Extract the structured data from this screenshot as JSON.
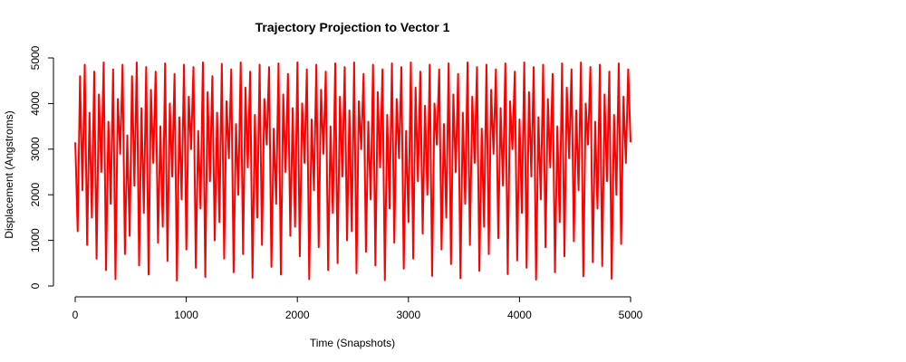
{
  "chart_data": {
    "type": "line",
    "title": "Trajectory Projection to Vector 1",
    "xlabel": "Time (Snapshots)",
    "ylabel": "Displacement (Angstroms)",
    "xlim": [
      0,
      5000
    ],
    "ylim": [
      0,
      5000
    ],
    "x_ticks": [
      "0",
      "1000",
      "2000",
      "3000",
      "4000",
      "5000"
    ],
    "y_ticks": [
      "0",
      "1000",
      "2000",
      "3000",
      "4000",
      "5000"
    ],
    "grid": false,
    "series": [
      {
        "color": "#ff0000",
        "x_start": 1,
        "x_end": 5000,
        "values": [
          3150,
          1200,
          4600,
          2100,
          4850,
          900,
          3800,
          1500,
          4700,
          600,
          4200,
          2500,
          4900,
          350,
          3600,
          1800,
          4750,
          150,
          4100,
          2900,
          4850,
          700,
          3300,
          1100,
          4600,
          2200,
          4900,
          450,
          3900,
          1600,
          4800,
          250,
          4300,
          2700,
          4700,
          950,
          3500,
          1300,
          4880,
          550,
          4000,
          2400,
          4650,
          120,
          3700,
          1900,
          4850,
          800,
          4150,
          3000,
          4800,
          400,
          3400,
          1700,
          4900,
          200,
          4250,
          2300,
          4600,
          1000,
          3800,
          1400,
          4870,
          600,
          4050,
          2800,
          4750,
          300,
          3550,
          2000,
          4900,
          700,
          4350,
          2600,
          4700,
          180,
          3750,
          1500,
          4850,
          900,
          4100,
          3100,
          4800,
          420,
          3450,
          1800,
          4880,
          250,
          4200,
          2500,
          4650,
          1100,
          3900,
          1300,
          4900,
          650,
          4000,
          2700,
          4750,
          150,
          3650,
          2100,
          4850,
          850,
          4300,
          2900,
          4700,
          350,
          3500,
          1600,
          4880,
          500,
          4150,
          2400,
          4800,
          1000,
          3850,
          1200,
          4900,
          280,
          4050,
          3000,
          4650,
          750,
          3600,
          1900,
          4850,
          450,
          4250,
          2600,
          4750,
          130,
          3750,
          1700,
          4880,
          950,
          4100,
          2800,
          4800,
          380,
          3400,
          1400,
          4900,
          600,
          4350,
          2300,
          4700,
          1150,
          3950,
          2000,
          4850,
          220,
          4000,
          3100,
          4750,
          800,
          3550,
          1500,
          4880,
          480,
          4200,
          2500,
          4650,
          170,
          3800,
          1800,
          4900,
          900,
          4150,
          2700,
          4800,
          330,
          3450,
          1300,
          4850,
          700,
          4300,
          2900,
          4750,
          1050,
          3900,
          2200,
          4880,
          260,
          4050,
          3000,
          4700,
          560,
          3650,
          1600,
          4900,
          400,
          4250,
          2400,
          4800,
          140,
          3700,
          1900,
          4850,
          850,
          4100,
          2600,
          4650,
          300,
          3500,
          1400,
          4880,
          650,
          4350,
          2800,
          4750,
          980,
          3850,
          2100,
          4900,
          210,
          4000,
          3100,
          4800,
          520,
          3600,
          1700,
          4850,
          440,
          4200,
          2300,
          4700,
          160,
          3750,
          2000,
          4880,
          920,
          4150,
          2700,
          4750,
          3150
        ]
      }
    ]
  }
}
